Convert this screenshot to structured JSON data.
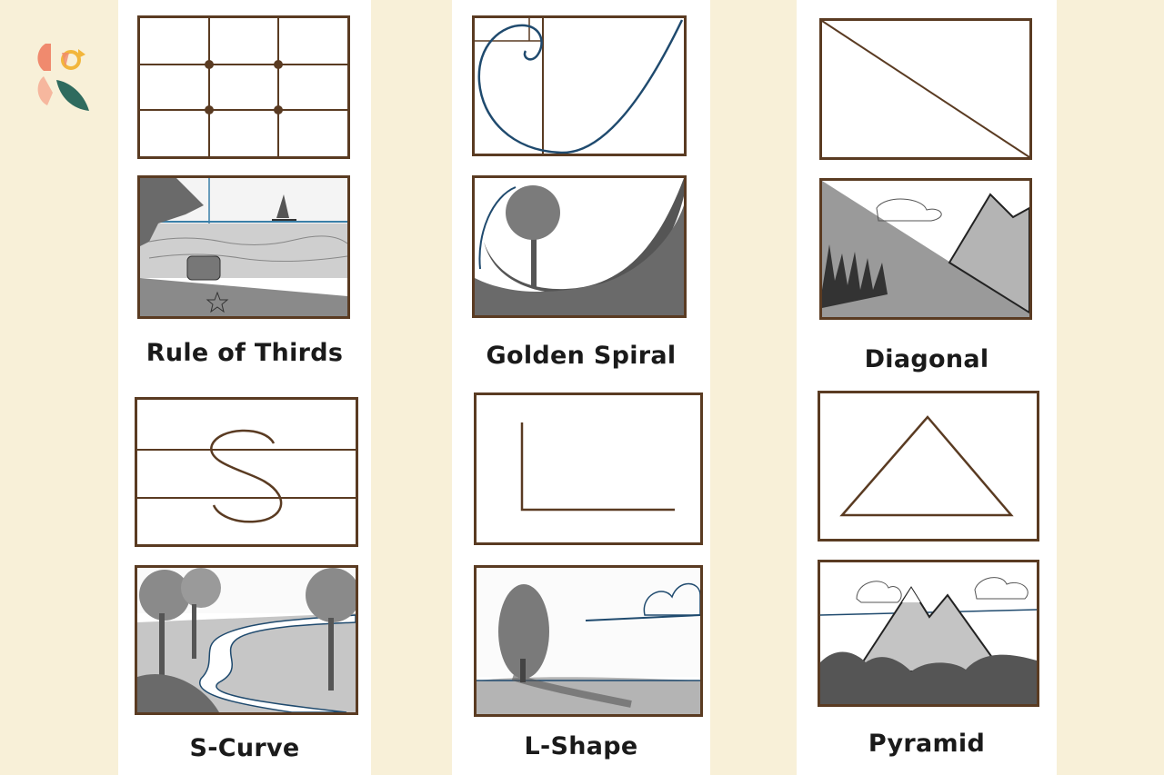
{
  "panels": [
    {
      "caption": "Rule of Thirds"
    },
    {
      "caption": "Golden Spiral"
    },
    {
      "caption": "Diagonal"
    },
    {
      "caption": "S-Curve"
    },
    {
      "caption": "L-Shape"
    },
    {
      "caption": "Pyramid"
    }
  ],
  "colors": {
    "background": "#f8f0d8",
    "frame": "#5a3b22",
    "spiral": "#1f4a6e",
    "logo_coral": "#f08a6e",
    "logo_teal": "#2f6b5e",
    "logo_yellow": "#f2b63c"
  }
}
